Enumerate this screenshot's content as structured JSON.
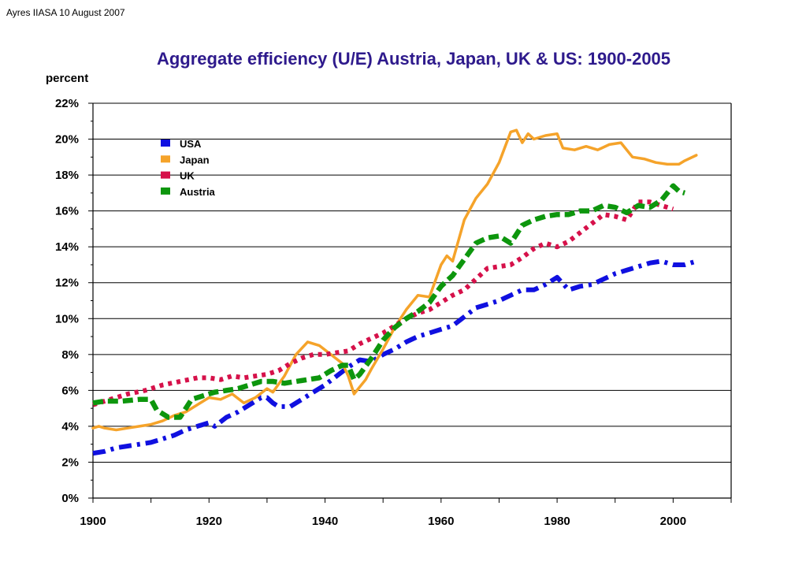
{
  "header_note": "Ayres IIASA 10 August 2007",
  "chart_data": {
    "type": "line",
    "title": "Aggregate efficiency (U/E) Austria, Japan, UK & US: 1900-2005",
    "ylabel": "percent",
    "xlabel": "",
    "xlim": [
      1900,
      2010
    ],
    "ylim": [
      0,
      22
    ],
    "x_ticks": [
      1900,
      1920,
      1940,
      1960,
      1980,
      2000
    ],
    "x_tick_labels": [
      "1900",
      "1920",
      "1940",
      "1960",
      "1980",
      "2000"
    ],
    "y_ticks": [
      0,
      2,
      4,
      6,
      8,
      10,
      12,
      14,
      16,
      18,
      20,
      22
    ],
    "y_tick_labels": [
      "0%",
      "2%",
      "4%",
      "6%",
      "8%",
      "10%",
      "12%",
      "14%",
      "16%",
      "18%",
      "20%",
      "22%"
    ],
    "grid": "horizontal",
    "legend_position": "top-left",
    "series": [
      {
        "name": "USA",
        "color": "#1010e0",
        "style": "dash-dot",
        "points": [
          [
            1900,
            2.5
          ],
          [
            1902,
            2.6
          ],
          [
            1904,
            2.8
          ],
          [
            1906,
            2.9
          ],
          [
            1908,
            3.0
          ],
          [
            1910,
            3.1
          ],
          [
            1912,
            3.3
          ],
          [
            1914,
            3.5
          ],
          [
            1916,
            3.8
          ],
          [
            1918,
            4.0
          ],
          [
            1920,
            4.2
          ],
          [
            1921,
            4.0
          ],
          [
            1923,
            4.5
          ],
          [
            1925,
            4.8
          ],
          [
            1927,
            5.2
          ],
          [
            1929,
            5.6
          ],
          [
            1930,
            5.6
          ],
          [
            1931,
            5.3
          ],
          [
            1932,
            5.1
          ],
          [
            1934,
            5.1
          ],
          [
            1936,
            5.5
          ],
          [
            1938,
            5.9
          ],
          [
            1940,
            6.3
          ],
          [
            1942,
            6.8
          ],
          [
            1944,
            7.3
          ],
          [
            1946,
            7.7
          ],
          [
            1948,
            7.6
          ],
          [
            1950,
            8.0
          ],
          [
            1952,
            8.3
          ],
          [
            1954,
            8.7
          ],
          [
            1956,
            9.0
          ],
          [
            1958,
            9.2
          ],
          [
            1960,
            9.4
          ],
          [
            1962,
            9.6
          ],
          [
            1964,
            10.1
          ],
          [
            1966,
            10.6
          ],
          [
            1968,
            10.8
          ],
          [
            1970,
            11.0
          ],
          [
            1972,
            11.3
          ],
          [
            1974,
            11.6
          ],
          [
            1976,
            11.6
          ],
          [
            1978,
            11.9
          ],
          [
            1980,
            12.3
          ],
          [
            1982,
            11.6
          ],
          [
            1984,
            11.8
          ],
          [
            1986,
            11.9
          ],
          [
            1988,
            12.2
          ],
          [
            1990,
            12.5
          ],
          [
            1992,
            12.7
          ],
          [
            1994,
            12.9
          ],
          [
            1996,
            13.1
          ],
          [
            1998,
            13.2
          ],
          [
            2000,
            13.0
          ],
          [
            2002,
            13.0
          ],
          [
            2004,
            13.2
          ]
        ]
      },
      {
        "name": "Japan",
        "color": "#f5a32a",
        "style": "solid",
        "points": [
          [
            1900,
            3.9
          ],
          [
            1901,
            4.0
          ],
          [
            1902,
            3.9
          ],
          [
            1904,
            3.8
          ],
          [
            1906,
            3.9
          ],
          [
            1908,
            4.0
          ],
          [
            1910,
            4.1
          ],
          [
            1912,
            4.3
          ],
          [
            1914,
            4.6
          ],
          [
            1916,
            4.8
          ],
          [
            1918,
            5.2
          ],
          [
            1920,
            5.6
          ],
          [
            1922,
            5.5
          ],
          [
            1924,
            5.8
          ],
          [
            1926,
            5.3
          ],
          [
            1928,
            5.6
          ],
          [
            1930,
            6.1
          ],
          [
            1931,
            5.9
          ],
          [
            1933,
            6.8
          ],
          [
            1935,
            8.0
          ],
          [
            1937,
            8.7
          ],
          [
            1939,
            8.5
          ],
          [
            1941,
            8.0
          ],
          [
            1943,
            7.5
          ],
          [
            1944,
            6.8
          ],
          [
            1945,
            5.8
          ],
          [
            1946,
            6.2
          ],
          [
            1947,
            6.6
          ],
          [
            1948,
            7.2
          ],
          [
            1950,
            8.3
          ],
          [
            1952,
            9.5
          ],
          [
            1954,
            10.5
          ],
          [
            1956,
            11.3
          ],
          [
            1958,
            11.2
          ],
          [
            1960,
            13.0
          ],
          [
            1961,
            13.5
          ],
          [
            1962,
            13.2
          ],
          [
            1964,
            15.5
          ],
          [
            1966,
            16.7
          ],
          [
            1968,
            17.5
          ],
          [
            1970,
            18.7
          ],
          [
            1972,
            20.4
          ],
          [
            1973,
            20.5
          ],
          [
            1974,
            19.8
          ],
          [
            1975,
            20.3
          ],
          [
            1976,
            20.0
          ],
          [
            1978,
            20.2
          ],
          [
            1980,
            20.3
          ],
          [
            1981,
            19.5
          ],
          [
            1983,
            19.4
          ],
          [
            1985,
            19.6
          ],
          [
            1987,
            19.4
          ],
          [
            1989,
            19.7
          ],
          [
            1991,
            19.8
          ],
          [
            1993,
            19.0
          ],
          [
            1995,
            18.9
          ],
          [
            1997,
            18.7
          ],
          [
            1999,
            18.6
          ],
          [
            2001,
            18.6
          ],
          [
            2002,
            18.8
          ],
          [
            2004,
            19.1
          ]
        ]
      },
      {
        "name": "UK",
        "color": "#d6114a",
        "style": "dotted",
        "points": [
          [
            1900,
            5.2
          ],
          [
            1903,
            5.5
          ],
          [
            1906,
            5.8
          ],
          [
            1909,
            6.0
          ],
          [
            1912,
            6.3
          ],
          [
            1915,
            6.5
          ],
          [
            1918,
            6.7
          ],
          [
            1920,
            6.7
          ],
          [
            1922,
            6.6
          ],
          [
            1924,
            6.8
          ],
          [
            1926,
            6.7
          ],
          [
            1928,
            6.8
          ],
          [
            1930,
            6.9
          ],
          [
            1932,
            7.1
          ],
          [
            1934,
            7.5
          ],
          [
            1936,
            7.8
          ],
          [
            1938,
            8.0
          ],
          [
            1940,
            8.0
          ],
          [
            1942,
            8.1
          ],
          [
            1944,
            8.2
          ],
          [
            1946,
            8.6
          ],
          [
            1948,
            8.9
          ],
          [
            1950,
            9.2
          ],
          [
            1952,
            9.6
          ],
          [
            1954,
            10.0
          ],
          [
            1956,
            10.3
          ],
          [
            1958,
            10.5
          ],
          [
            1960,
            10.9
          ],
          [
            1962,
            11.3
          ],
          [
            1964,
            11.6
          ],
          [
            1966,
            12.2
          ],
          [
            1968,
            12.8
          ],
          [
            1970,
            12.9
          ],
          [
            1972,
            13.0
          ],
          [
            1974,
            13.4
          ],
          [
            1976,
            13.9
          ],
          [
            1978,
            14.2
          ],
          [
            1980,
            14.0
          ],
          [
            1982,
            14.3
          ],
          [
            1984,
            14.8
          ],
          [
            1986,
            15.3
          ],
          [
            1988,
            15.8
          ],
          [
            1990,
            15.7
          ],
          [
            1992,
            15.5
          ],
          [
            1994,
            16.5
          ],
          [
            1996,
            16.5
          ],
          [
            1998,
            16.3
          ],
          [
            2000,
            16.1
          ]
        ]
      },
      {
        "name": "Austria",
        "color": "#0d960d",
        "style": "dashed",
        "points": [
          [
            1900,
            5.3
          ],
          [
            1902,
            5.4
          ],
          [
            1905,
            5.4
          ],
          [
            1908,
            5.5
          ],
          [
            1910,
            5.5
          ],
          [
            1911,
            4.9
          ],
          [
            1913,
            4.5
          ],
          [
            1915,
            4.5
          ],
          [
            1917,
            5.5
          ],
          [
            1919,
            5.7
          ],
          [
            1921,
            5.9
          ],
          [
            1923,
            6.0
          ],
          [
            1925,
            6.1
          ],
          [
            1927,
            6.3
          ],
          [
            1929,
            6.5
          ],
          [
            1931,
            6.5
          ],
          [
            1933,
            6.4
          ],
          [
            1935,
            6.5
          ],
          [
            1937,
            6.6
          ],
          [
            1939,
            6.7
          ],
          [
            1941,
            7.1
          ],
          [
            1943,
            7.4
          ],
          [
            1944,
            7.4
          ],
          [
            1945,
            6.6
          ],
          [
            1946,
            6.9
          ],
          [
            1948,
            7.8
          ],
          [
            1950,
            8.8
          ],
          [
            1952,
            9.5
          ],
          [
            1954,
            10.0
          ],
          [
            1956,
            10.4
          ],
          [
            1958,
            10.9
          ],
          [
            1960,
            11.8
          ],
          [
            1962,
            12.4
          ],
          [
            1964,
            13.3
          ],
          [
            1966,
            14.2
          ],
          [
            1968,
            14.5
          ],
          [
            1970,
            14.6
          ],
          [
            1972,
            14.2
          ],
          [
            1974,
            15.2
          ],
          [
            1976,
            15.5
          ],
          [
            1978,
            15.7
          ],
          [
            1980,
            15.8
          ],
          [
            1982,
            15.8
          ],
          [
            1984,
            16.0
          ],
          [
            1986,
            16.0
          ],
          [
            1988,
            16.3
          ],
          [
            1990,
            16.2
          ],
          [
            1992,
            15.9
          ],
          [
            1994,
            16.3
          ],
          [
            1996,
            16.2
          ],
          [
            1998,
            16.6
          ],
          [
            2000,
            17.4
          ],
          [
            2001,
            17.1
          ],
          [
            2002,
            17.0
          ]
        ]
      }
    ]
  }
}
